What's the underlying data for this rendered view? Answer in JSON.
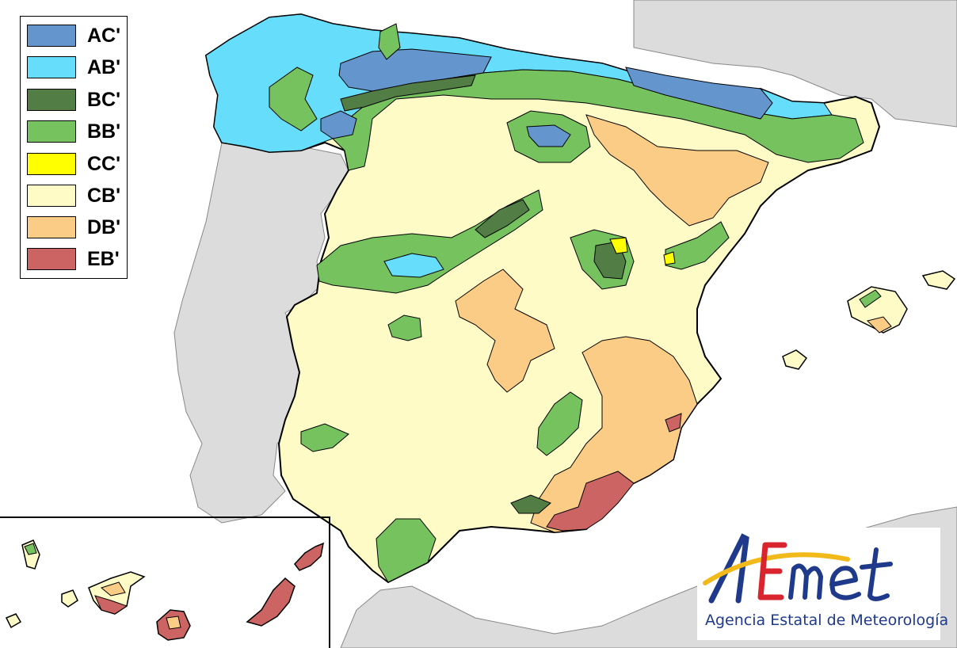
{
  "legend": {
    "items": [
      {
        "code": "AC'",
        "color": "#6495cd"
      },
      {
        "code": "AB'",
        "color": "#66ddfa"
      },
      {
        "code": "BC'",
        "color": "#527e46"
      },
      {
        "code": "BB'",
        "color": "#76c25e"
      },
      {
        "code": "CC'",
        "color": "#ffff00"
      },
      {
        "code": "CB'",
        "color": "#fefbc6"
      },
      {
        "code": "DB'",
        "color": "#fbcc86"
      },
      {
        "code": "EB'",
        "color": "#cd6464"
      }
    ]
  },
  "colors": {
    "sea": "#ffffff",
    "neighbor_land": "#dcdcdc",
    "border": "#000000"
  },
  "logo": {
    "text": "AEmet",
    "caption": "Agencia Estatal de Meteorología",
    "colors": {
      "a": "#1f3a8a",
      "e": "#d9262e",
      "arc": "#f2b91a",
      "met": "#1f3a8a"
    }
  }
}
